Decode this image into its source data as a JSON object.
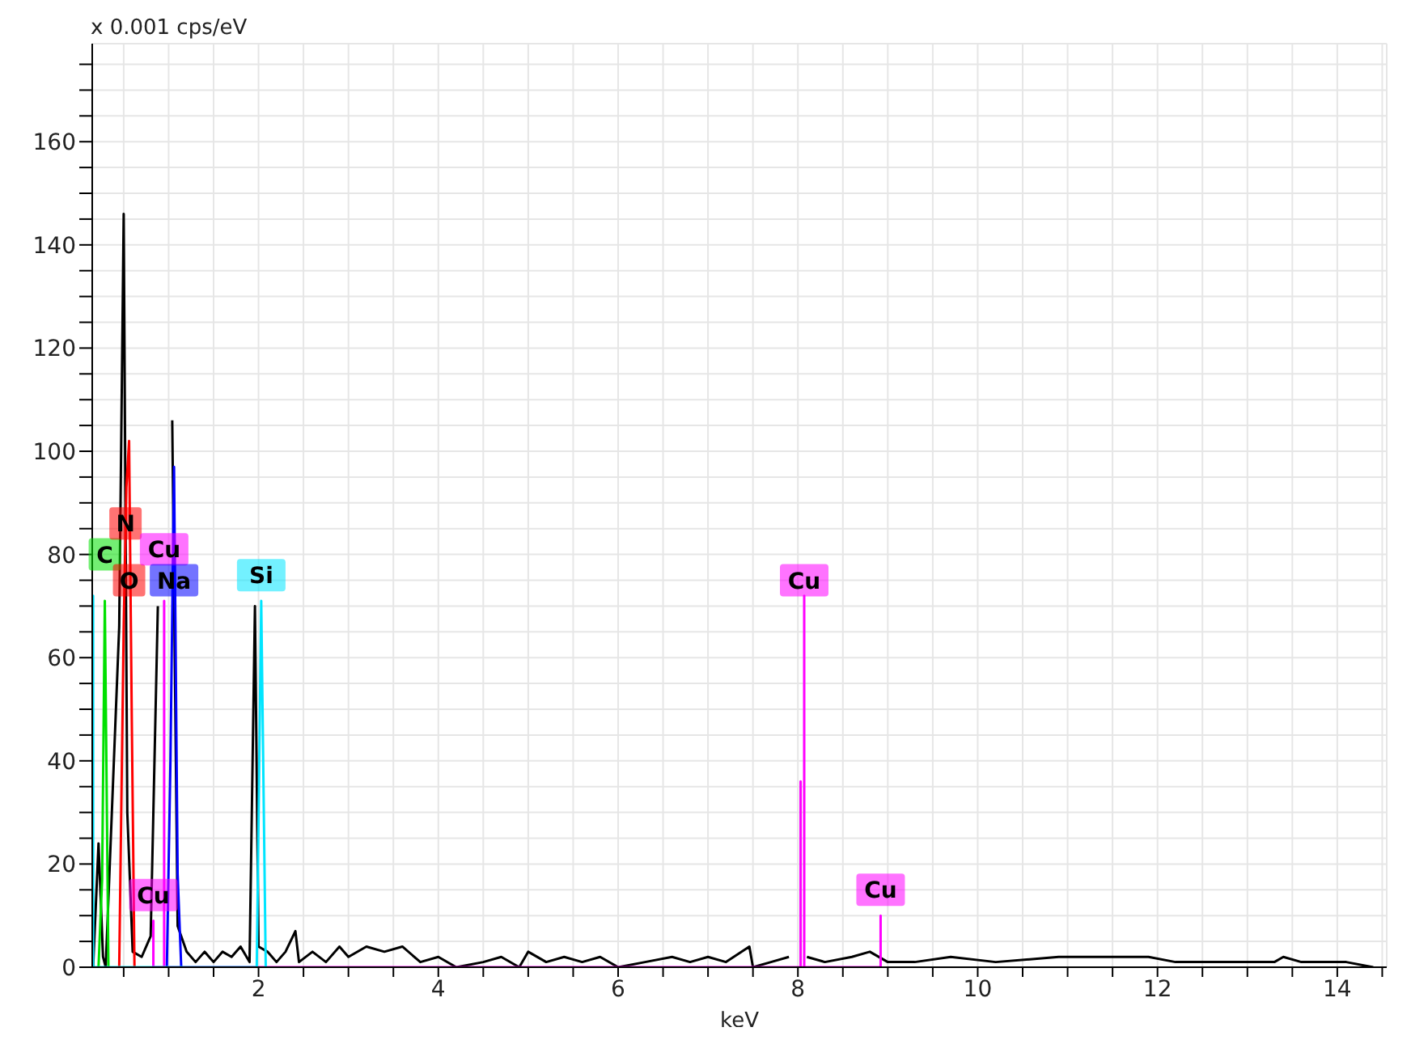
{
  "chart_data": {
    "type": "line",
    "xlabel": "keV",
    "ylabel": "x 0.001 cps/eV",
    "xlim": [
      0.15,
      14.55
    ],
    "ylim": [
      0,
      179
    ],
    "xticks": [
      {
        "value": 0.5,
        "label": null
      },
      {
        "value": 1,
        "label": null
      },
      {
        "value": 1.5,
        "label": null
      },
      2,
      {
        "value": 2.5,
        "label": null
      },
      {
        "value": 3,
        "label": null
      },
      {
        "value": 3.5,
        "label": null
      },
      4,
      {
        "value": 4.5,
        "label": null
      },
      {
        "value": 5,
        "label": null
      },
      {
        "value": 5.5,
        "label": null
      },
      6,
      {
        "value": 6.5,
        "label": null
      },
      {
        "value": 7,
        "label": null
      },
      {
        "value": 7.5,
        "label": null
      },
      8,
      {
        "value": 8.5,
        "label": null
      },
      {
        "value": 9,
        "label": null
      },
      {
        "value": 9.5,
        "label": null
      },
      10,
      {
        "value": 10.5,
        "label": null
      },
      {
        "value": 11,
        "label": null
      },
      {
        "value": 11.5,
        "label": null
      },
      12,
      {
        "value": 12.5,
        "label": null
      },
      {
        "value": 13,
        "label": null
      },
      {
        "value": 13.5,
        "label": null
      },
      14,
      {
        "value": 14.5,
        "label": null
      }
    ],
    "yticks": [
      0,
      {
        "value": 5,
        "label": null
      },
      {
        "value": 10,
        "label": null
      },
      {
        "value": 15,
        "label": null
      },
      20,
      {
        "value": 25,
        "label": null
      },
      {
        "value": 30,
        "label": null
      },
      {
        "value": 35,
        "label": null
      },
      40,
      {
        "value": 45,
        "label": null
      },
      {
        "value": 50,
        "label": null
      },
      {
        "value": 55,
        "label": null
      },
      60,
      {
        "value": 65,
        "label": null
      },
      {
        "value": 70,
        "label": null
      },
      {
        "value": 75,
        "label": null
      },
      80,
      {
        "value": 85,
        "label": null
      },
      {
        "value": 90,
        "label": null
      },
      {
        "value": 95,
        "label": null
      },
      100,
      {
        "value": 105,
        "label": null
      },
      {
        "value": 110,
        "label": null
      },
      {
        "value": 115,
        "label": null
      },
      120,
      {
        "value": 125,
        "label": null
      },
      {
        "value": 130,
        "label": null
      },
      {
        "value": 135,
        "label": null
      },
      140,
      {
        "value": 145,
        "label": null
      },
      {
        "value": 150,
        "label": null
      },
      {
        "value": 155,
        "label": null
      },
      160,
      {
        "value": 165,
        "label": null
      },
      {
        "value": 170,
        "label": null
      },
      {
        "value": 175,
        "label": null
      }
    ],
    "grid": true,
    "marker": "none",
    "series": [
      {
        "color": "#000000",
        "x": [
          0.16,
          0.22,
          0.27,
          0.3,
          0.45,
          0.5,
          0.54,
          0.6,
          0.7,
          0.8,
          0.88,
          0.95,
          1.04,
          1.1,
          1.2,
          1.3,
          1.4,
          1.5,
          1.6,
          1.7,
          1.8,
          1.9,
          1.96,
          2.0,
          2.1,
          2.2,
          2.3,
          2.41,
          2.45,
          2.6,
          2.75,
          2.9,
          3.0,
          3.2,
          3.4,
          3.6,
          3.8,
          4.0,
          4.2,
          4.5,
          4.7,
          4.9,
          5.0,
          5.2,
          5.4,
          5.6,
          5.8,
          6.0,
          6.3,
          6.6,
          6.8,
          7.0,
          7.2,
          7.46,
          7.5,
          7.7,
          7.9,
          8.03,
          8.1,
          8.3,
          8.6,
          8.8,
          9.0,
          9.3,
          9.7,
          10.2,
          10.9,
          11.5,
          11.9,
          12.2,
          12.7,
          13.3,
          13.4,
          13.6,
          14.1,
          14.4
        ],
        "values": [
          0,
          24,
          2,
          0,
          66,
          146,
          30,
          3,
          2,
          6,
          70,
          null,
          106,
          8,
          3,
          1,
          3,
          1,
          3,
          2,
          4,
          1,
          70,
          4,
          3,
          1,
          3,
          7,
          1,
          3,
          1,
          4,
          2,
          4,
          3,
          4,
          1,
          2,
          0,
          1,
          2,
          0,
          3,
          1,
          2,
          1,
          2,
          0,
          1,
          2,
          1,
          2,
          1,
          4,
          0,
          1,
          2,
          null,
          2,
          1,
          2,
          3,
          1,
          1,
          2,
          1,
          2,
          2,
          2,
          1,
          1,
          1,
          2,
          1,
          1,
          0
        ]
      },
      {
        "color": "#00e000",
        "x": [
          0.22,
          0.26,
          0.29,
          0.33
        ],
        "values": [
          0,
          17,
          71,
          0
        ]
      },
      {
        "color": "#ff0000",
        "x": [
          0.45,
          0.5,
          0.53,
          0.56,
          0.59,
          0.62
        ],
        "values": [
          0,
          66,
          93,
          102,
          48,
          0
        ]
      },
      {
        "color": "#ff00ff",
        "x": [
          0.83,
          0.83,
          0.83,
          0.95,
          0.95,
          0.95,
          8.03,
          8.03,
          8.03,
          8.07,
          8.07,
          8.07,
          8.92,
          8.92,
          8.92
        ],
        "values": [
          0,
          9,
          0,
          0,
          71,
          0,
          0,
          36,
          0,
          0,
          72,
          0,
          0,
          10,
          0
        ]
      },
      {
        "color": "#0000ff",
        "x": [
          0.98,
          1.02,
          1.06,
          1.1,
          1.14
        ],
        "values": [
          0,
          40,
          97,
          18,
          0
        ]
      },
      {
        "color": "#00e5ff",
        "x": [
          0.16,
          0.16,
          0.16,
          1.98,
          2.03,
          2.08
        ],
        "values": [
          0,
          72,
          0,
          0,
          71,
          0
        ]
      }
    ],
    "annotations": [
      {
        "text": "C",
        "x": 0.29,
        "y": 80
      },
      {
        "text": "N",
        "x": 0.52,
        "y": 86
      },
      {
        "text": "O",
        "x": 0.56,
        "y": 75
      },
      {
        "text": "Cu",
        "x": 0.95,
        "y": 81
      },
      {
        "text": "Na",
        "x": 1.06,
        "y": 75
      },
      {
        "text": "Si",
        "x": 2.03,
        "y": 76
      },
      {
        "text": "Cu",
        "x": 8.07,
        "y": 75
      },
      {
        "text": "Cu",
        "x": 8.92,
        "y": 15
      },
      {
        "text": "Cu",
        "x": 0.83,
        "y": 14
      }
    ]
  }
}
